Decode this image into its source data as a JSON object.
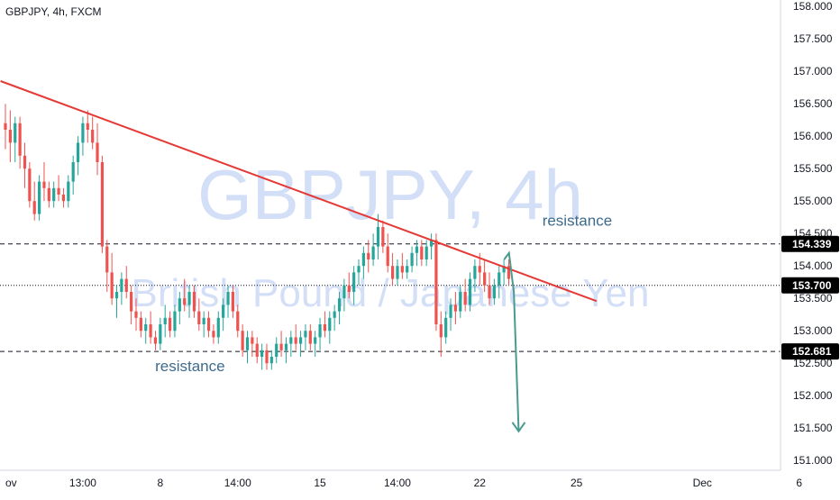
{
  "chart_data": {
    "type": "candlestick",
    "title": "GBPJPY, 4h, FXCM",
    "watermark": {
      "symbol": "GBPJPY, 4h",
      "description": "British Pound / Japanese Yen"
    },
    "ylim": [
      150.85,
      158.1
    ],
    "y_ticks": [
      "151.000",
      "151.500",
      "152.000",
      "152.500",
      "153.000",
      "153.500",
      "154.000",
      "154.500",
      "155.000",
      "155.500",
      "156.000",
      "156.500",
      "157.000",
      "157.500",
      "158.000"
    ],
    "x_ticks": [
      {
        "label": "ov",
        "bar": 0
      },
      {
        "label": "13:00",
        "bar": 16
      },
      {
        "label": "8",
        "bar": 32
      },
      {
        "label": "14:00",
        "bar": 48
      },
      {
        "label": "15",
        "bar": 65
      },
      {
        "label": "14:00",
        "bar": 81
      },
      {
        "label": "22",
        "bar": 98
      },
      {
        "label": "25",
        "bar": 118
      },
      {
        "label": "Dec",
        "bar": 144
      },
      {
        "label": "6",
        "bar": 164
      }
    ],
    "bar_count_span": 174,
    "candles": [
      [
        156.2,
        156.5,
        155.8,
        156.1
      ],
      [
        156.1,
        156.4,
        155.6,
        155.9
      ],
      [
        155.9,
        156.3,
        155.6,
        156.2
      ],
      [
        156.2,
        156.3,
        155.5,
        155.7
      ],
      [
        155.7,
        155.9,
        155.2,
        155.5
      ],
      [
        155.5,
        155.6,
        154.9,
        155.0
      ],
      [
        155.0,
        155.3,
        154.7,
        154.8
      ],
      [
        154.8,
        155.4,
        154.7,
        155.3
      ],
      [
        155.3,
        155.6,
        155.0,
        155.2
      ],
      [
        155.2,
        155.3,
        154.9,
        155.0
      ],
      [
        155.0,
        155.3,
        154.9,
        155.2
      ],
      [
        155.2,
        155.4,
        155.0,
        155.1
      ],
      [
        155.1,
        155.2,
        154.9,
        155.0
      ],
      [
        155.0,
        155.4,
        154.9,
        155.3
      ],
      [
        155.3,
        155.7,
        155.1,
        155.6
      ],
      [
        155.6,
        156.0,
        155.4,
        155.9
      ],
      [
        155.9,
        156.3,
        155.7,
        156.2
      ],
      [
        156.2,
        156.4,
        155.9,
        156.1
      ],
      [
        156.1,
        156.3,
        155.8,
        155.9
      ],
      [
        155.9,
        156.2,
        155.4,
        155.6
      ],
      [
        155.6,
        155.7,
        154.2,
        154.3
      ],
      [
        154.3,
        154.4,
        153.6,
        153.9
      ],
      [
        153.9,
        154.2,
        153.4,
        153.5
      ],
      [
        153.5,
        153.7,
        153.2,
        153.6
      ],
      [
        153.6,
        153.9,
        153.4,
        153.8
      ],
      [
        153.8,
        154.0,
        153.5,
        153.6
      ],
      [
        153.6,
        153.7,
        153.1,
        153.3
      ],
      [
        153.3,
        153.5,
        153.0,
        153.2
      ],
      [
        153.2,
        153.3,
        152.9,
        153.0
      ],
      [
        153.0,
        153.2,
        152.8,
        153.1
      ],
      [
        153.1,
        153.3,
        152.8,
        152.9
      ],
      [
        152.9,
        153.0,
        152.7,
        152.8
      ],
      [
        152.8,
        153.2,
        152.7,
        153.1
      ],
      [
        153.1,
        153.4,
        152.9,
        153.2
      ],
      [
        153.2,
        153.3,
        152.9,
        153.0
      ],
      [
        153.0,
        153.4,
        152.9,
        153.3
      ],
      [
        153.3,
        153.6,
        153.1,
        153.5
      ],
      [
        153.5,
        153.8,
        153.3,
        153.4
      ],
      [
        153.4,
        153.7,
        153.2,
        153.6
      ],
      [
        153.6,
        153.7,
        153.2,
        153.3
      ],
      [
        153.3,
        153.5,
        153.0,
        153.1
      ],
      [
        153.1,
        153.3,
        152.9,
        153.2
      ],
      [
        153.2,
        153.3,
        152.9,
        153.0
      ],
      [
        153.0,
        153.1,
        152.8,
        152.9
      ],
      [
        152.9,
        153.3,
        152.8,
        153.2
      ],
      [
        153.2,
        153.5,
        153.0,
        153.4
      ],
      [
        153.4,
        153.7,
        153.2,
        153.6
      ],
      [
        153.6,
        153.7,
        153.2,
        153.3
      ],
      [
        153.3,
        153.4,
        152.9,
        153.0
      ],
      [
        153.0,
        153.1,
        152.6,
        152.7
      ],
      [
        152.7,
        153.0,
        152.5,
        152.9
      ],
      [
        152.9,
        153.0,
        152.6,
        152.8
      ],
      [
        152.8,
        152.9,
        152.5,
        152.6
      ],
      [
        152.6,
        152.8,
        152.4,
        152.7
      ],
      [
        152.7,
        152.8,
        152.4,
        152.5
      ],
      [
        152.5,
        152.7,
        152.4,
        152.6
      ],
      [
        152.6,
        152.9,
        152.5,
        152.8
      ],
      [
        152.8,
        153.0,
        152.6,
        152.7
      ],
      [
        152.7,
        152.9,
        152.5,
        152.8
      ],
      [
        152.8,
        153.0,
        152.6,
        152.9
      ],
      [
        152.9,
        153.1,
        152.7,
        152.8
      ],
      [
        152.8,
        153.0,
        152.6,
        152.9
      ],
      [
        152.9,
        153.1,
        152.7,
        153.0
      ],
      [
        153.0,
        153.1,
        152.7,
        152.8
      ],
      [
        152.8,
        153.0,
        152.6,
        152.9
      ],
      [
        152.9,
        153.2,
        152.7,
        153.1
      ],
      [
        153.1,
        153.3,
        152.9,
        153.0
      ],
      [
        153.0,
        153.3,
        152.8,
        153.2
      ],
      [
        153.2,
        153.4,
        153.0,
        153.3
      ],
      [
        153.3,
        153.6,
        153.1,
        153.5
      ],
      [
        153.5,
        153.8,
        153.3,
        153.7
      ],
      [
        153.7,
        153.9,
        153.5,
        153.6
      ],
      [
        153.6,
        154.0,
        153.4,
        153.9
      ],
      [
        153.9,
        154.1,
        153.7,
        154.0
      ],
      [
        154.0,
        154.3,
        153.8,
        154.2
      ],
      [
        154.2,
        154.4,
        153.9,
        154.1
      ],
      [
        154.1,
        154.5,
        154.0,
        154.3
      ],
      [
        154.3,
        154.8,
        154.1,
        154.6
      ],
      [
        154.6,
        154.7,
        154.2,
        154.3
      ],
      [
        154.3,
        154.5,
        153.9,
        154.0
      ],
      [
        154.0,
        154.2,
        153.7,
        153.8
      ],
      [
        153.8,
        154.1,
        153.7,
        154.0
      ],
      [
        154.0,
        154.2,
        153.8,
        153.9
      ],
      [
        153.9,
        154.1,
        153.8,
        154.0
      ],
      [
        154.0,
        154.3,
        153.9,
        154.2
      ],
      [
        154.2,
        154.4,
        154.0,
        154.3
      ],
      [
        154.3,
        154.4,
        154.0,
        154.1
      ],
      [
        154.1,
        154.4,
        154.0,
        154.3
      ],
      [
        154.3,
        154.5,
        154.1,
        154.4
      ],
      [
        154.4,
        154.5,
        153.0,
        153.1
      ],
      [
        153.1,
        153.3,
        152.6,
        152.9
      ],
      [
        152.9,
        153.3,
        152.8,
        153.2
      ],
      [
        153.2,
        153.5,
        153.0,
        153.4
      ],
      [
        153.4,
        153.6,
        153.1,
        153.3
      ],
      [
        153.3,
        153.7,
        153.2,
        153.6
      ],
      [
        153.6,
        153.8,
        153.3,
        153.4
      ],
      [
        153.4,
        153.9,
        153.3,
        153.8
      ],
      [
        153.8,
        154.1,
        153.6,
        154.0
      ],
      [
        154.0,
        154.2,
        153.7,
        153.9
      ],
      [
        153.9,
        154.1,
        153.6,
        153.7
      ],
      [
        153.7,
        153.9,
        153.4,
        153.5
      ],
      [
        153.5,
        153.8,
        153.4,
        153.7
      ],
      [
        153.7,
        154.0,
        153.5,
        153.9
      ],
      [
        153.9,
        154.1,
        153.7,
        154.0
      ],
      [
        154.0,
        154.1,
        153.7,
        153.8
      ]
    ],
    "horizontal_lines": [
      {
        "value": 154.339,
        "label": "154.339",
        "style": "dashed",
        "label_bg": "#000000"
      },
      {
        "value": 153.7,
        "label": "153.700",
        "style": "dotted",
        "label_bg": "#000000"
      },
      {
        "value": 152.681,
        "label": "152.681",
        "style": "dashed",
        "label_bg": "#000000"
      }
    ],
    "trendline": {
      "from": {
        "bar": -1,
        "price": 156.85
      },
      "to": {
        "bar": 105,
        "price": 153.5
      },
      "color": "#e53935"
    },
    "arrow": {
      "points": [
        {
          "bar": 101,
          "price": 154.1
        },
        {
          "bar": 102,
          "price": 154.2
        },
        {
          "bar": 103,
          "price": 153.6
        },
        {
          "bar": 104,
          "price": 151.45
        }
      ],
      "color": "#4a9a8e"
    },
    "annotations": [
      {
        "text": "resistance",
        "bar": 110,
        "price": 154.62
      },
      {
        "text": "resistance",
        "bar": 30,
        "price": 152.38
      }
    ],
    "colors": {
      "up": "#26a69a",
      "down": "#ef5350",
      "watermark": "#c5d3f5",
      "annotation": "#3d6b8c"
    }
  }
}
